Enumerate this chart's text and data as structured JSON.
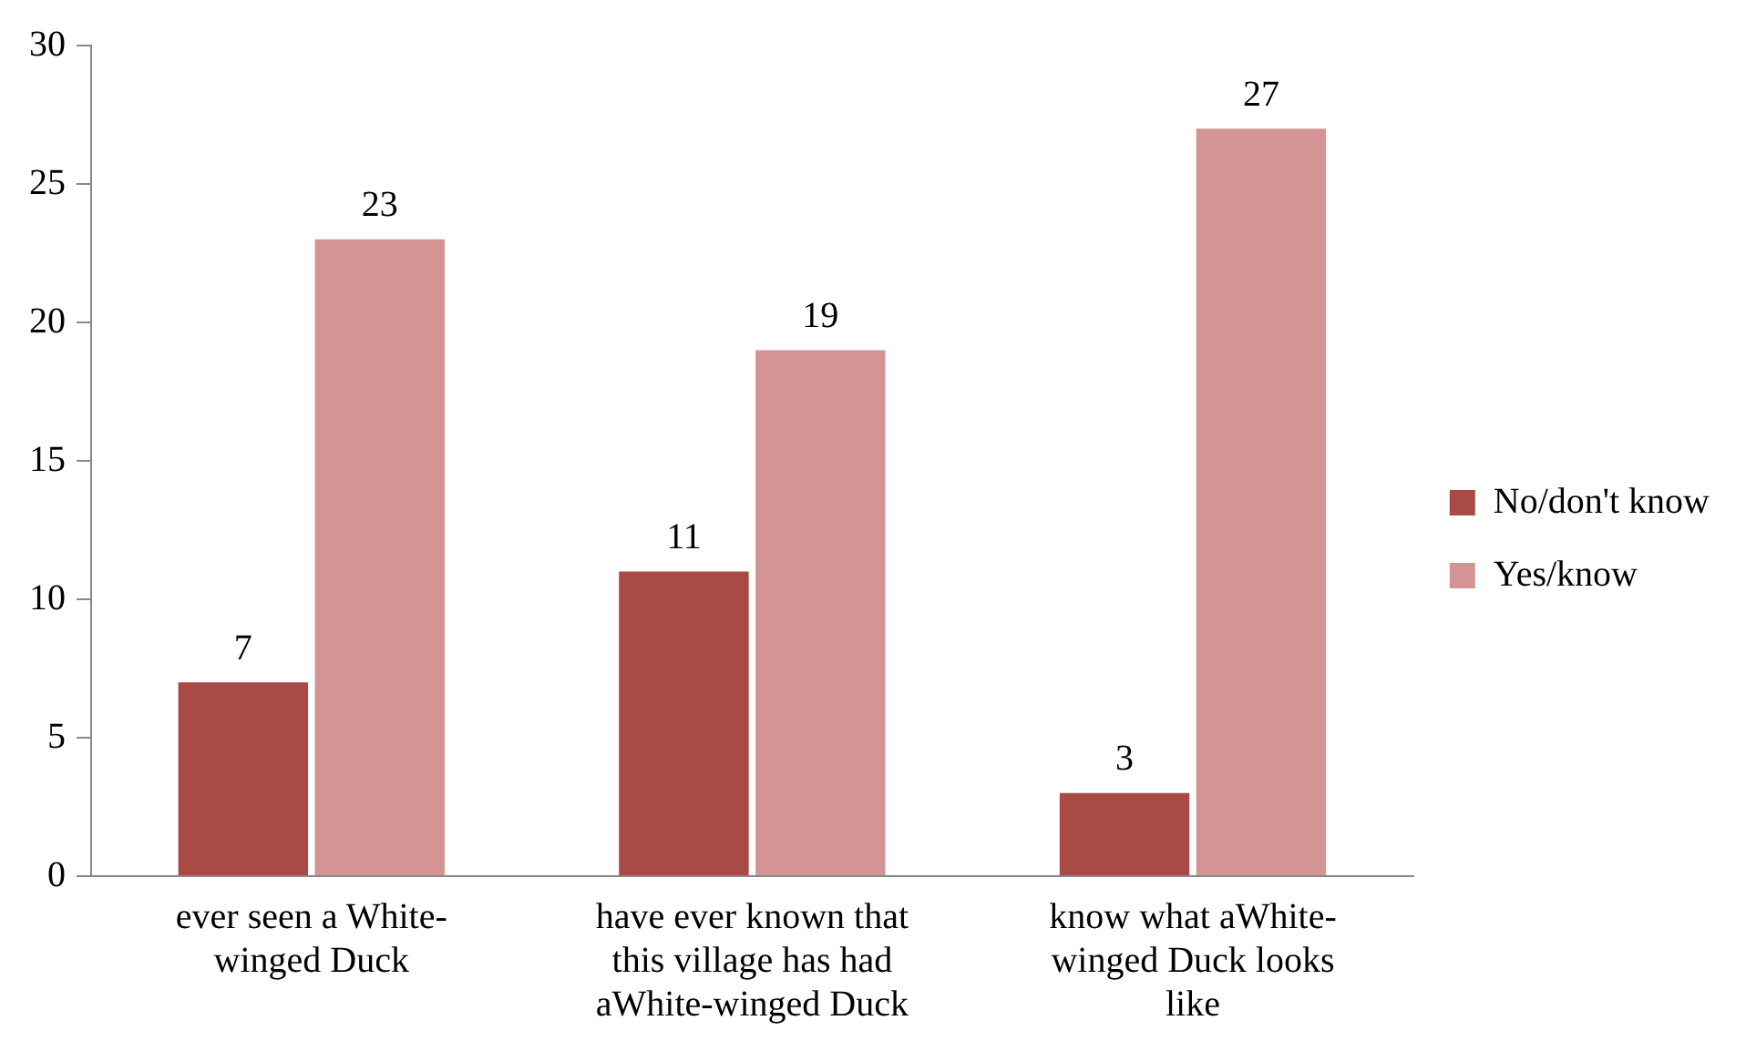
{
  "chart_data": {
    "type": "bar",
    "categories": [
      "ever seen a White-winged Duck",
      "have ever known that this village has had aWhite-winged Duck",
      "know what aWhite-winged Duck looks like"
    ],
    "series": [
      {
        "name": "No/don't know",
        "color": "#a94a45",
        "values": [
          7,
          11,
          3
        ]
      },
      {
        "name": "Yes/know",
        "color": "#d49494",
        "values": [
          23,
          19,
          27
        ]
      }
    ],
    "ylim": [
      0,
      30
    ],
    "yticks": [
      0,
      5,
      10,
      15,
      20,
      25,
      30
    ],
    "grid": false,
    "legend": "right",
    "data_labels": true
  }
}
